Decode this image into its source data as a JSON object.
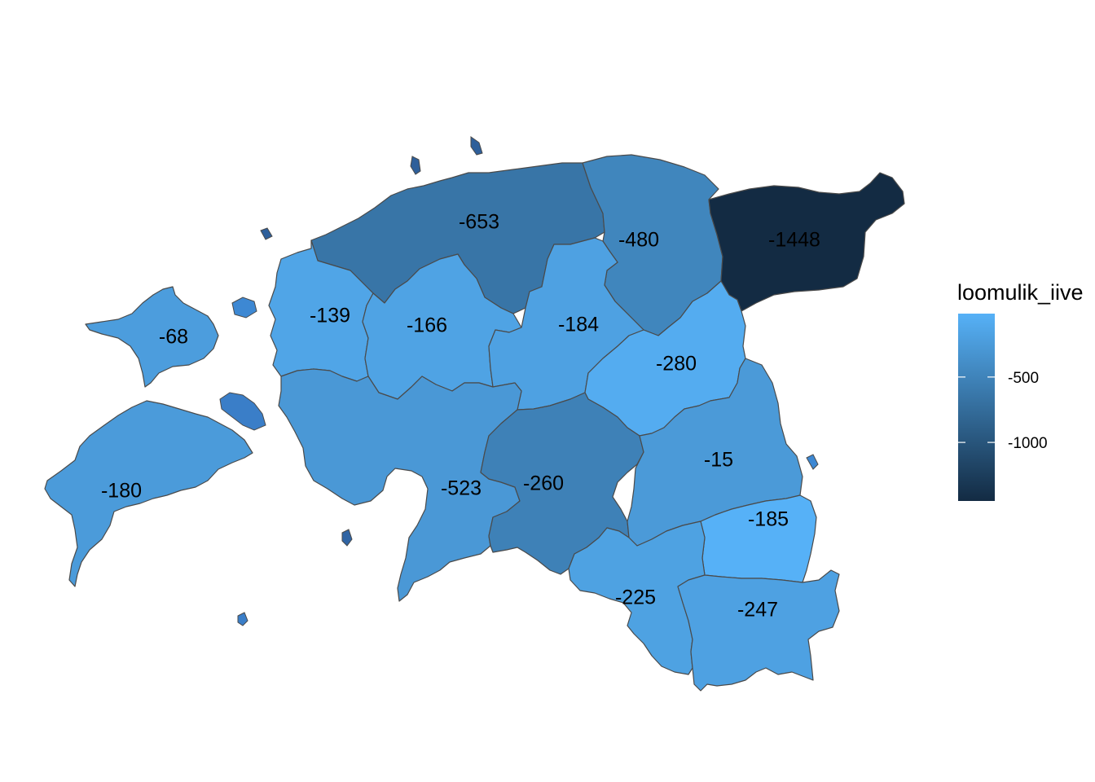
{
  "legend": {
    "title": "loomulik_iive",
    "ticks": [
      {
        "value": -500,
        "label": "-500"
      },
      {
        "value": -1000,
        "label": "-1000"
      }
    ],
    "min": -1448,
    "max": -15,
    "color_low": "#132B43",
    "color_high": "#56B1F7"
  },
  "map_data": {
    "variable": "loomulik_iive",
    "regions": [
      {
        "value": -653,
        "label": "-653"
      },
      {
        "value": -480,
        "label": "-480"
      },
      {
        "value": -1448,
        "label": "-1448"
      },
      {
        "value": -139,
        "label": "-139"
      },
      {
        "value": -166,
        "label": "-166"
      },
      {
        "value": -184,
        "label": "-184"
      },
      {
        "value": -68,
        "label": "-68"
      },
      {
        "value": -280,
        "label": "-280"
      },
      {
        "value": -523,
        "label": "-523"
      },
      {
        "value": -260,
        "label": "-260"
      },
      {
        "value": -15,
        "label": "-15"
      },
      {
        "value": -180,
        "label": "-180"
      },
      {
        "value": -185,
        "label": "-185"
      },
      {
        "value": -225,
        "label": "-225"
      },
      {
        "value": -247,
        "label": "-247"
      }
    ]
  }
}
